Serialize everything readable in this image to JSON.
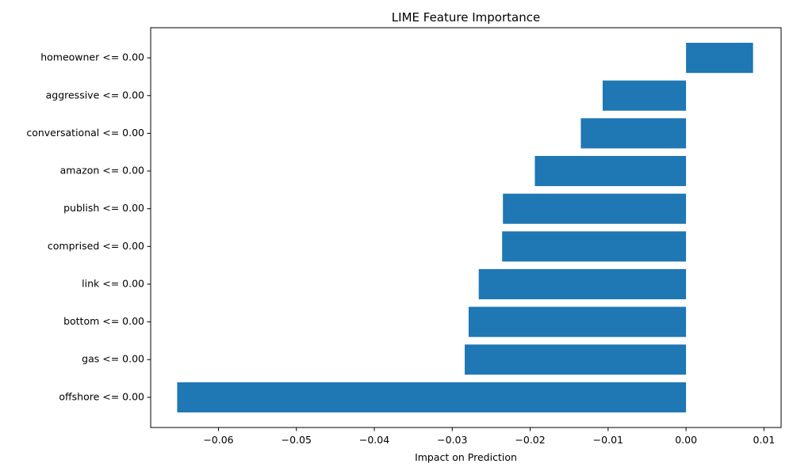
{
  "chart_data": {
    "type": "bar",
    "orientation": "horizontal",
    "title": "LIME Feature Importance",
    "xlabel": "Impact on Prediction",
    "ylabel": "",
    "xlim": [
      -0.0687,
      0.0122
    ],
    "x_ticks": [
      -0.06,
      -0.05,
      -0.04,
      -0.03,
      -0.02,
      -0.01,
      0.0,
      0.01
    ],
    "x_tick_labels": [
      "−0.06",
      "−0.05",
      "−0.04",
      "−0.03",
      "−0.02",
      "−0.01",
      "0.00",
      "0.01"
    ],
    "categories": [
      "homeowner <= 0.00",
      "aggressive <= 0.00",
      "conversational <= 0.00",
      "amazon <= 0.00",
      "publish <= 0.00",
      "comprised <= 0.00",
      "link <= 0.00",
      "bottom <= 0.00",
      "gas <= 0.00",
      "offshore <= 0.00"
    ],
    "values": [
      0.0086,
      -0.0107,
      -0.0135,
      -0.0194,
      -0.0235,
      -0.0236,
      -0.0266,
      -0.0279,
      -0.0284,
      -0.0653
    ],
    "bar_color": "#1f77b4",
    "grid": false
  }
}
